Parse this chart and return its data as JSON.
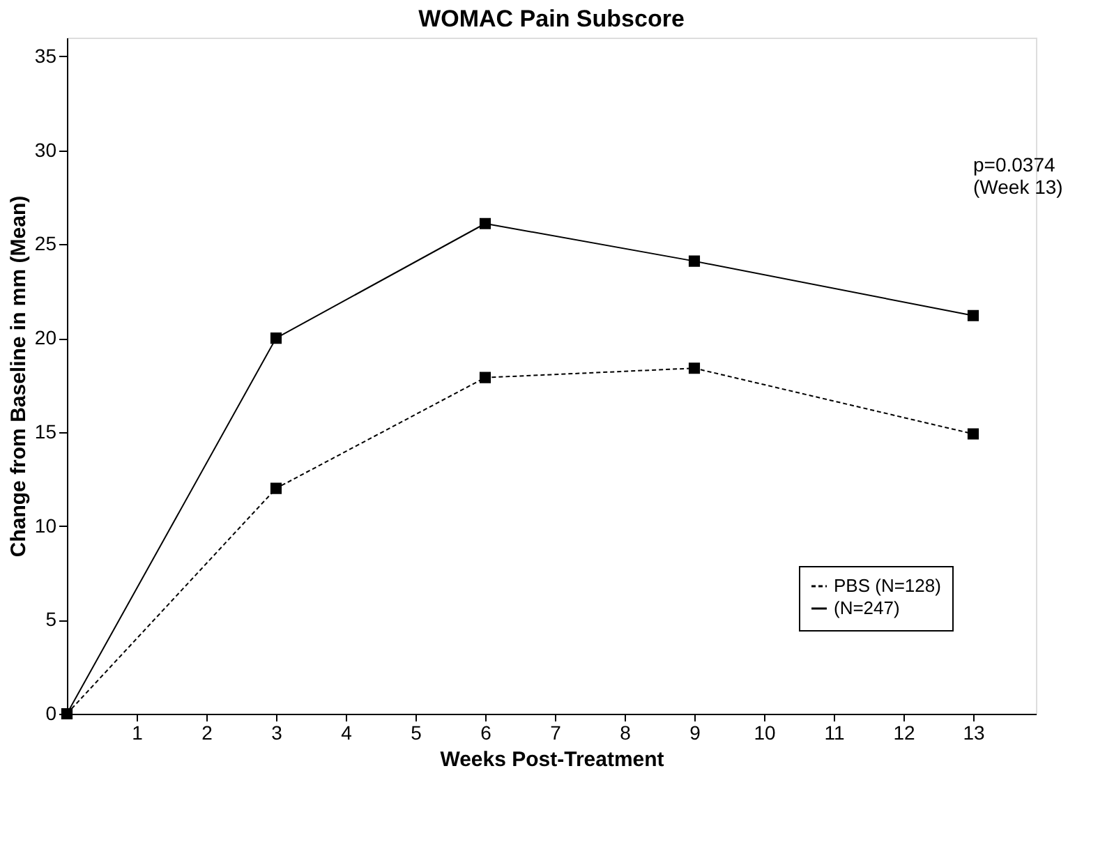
{
  "chart_data": {
    "type": "line",
    "title": "WOMAC Pain Subscore",
    "xlabel": "Weeks Post-Treatment",
    "ylabel": "Change from Baseline in mm (Mean)",
    "x": [
      0,
      3,
      6,
      9,
      13
    ],
    "series": [
      {
        "name": "PBS (N=128)",
        "color": "#000000",
        "values": [
          0,
          12,
          17.9,
          18.4,
          14.9
        ],
        "line_style": "dashed"
      },
      {
        "name": "(N=247)",
        "color": "#000000",
        "values": [
          0,
          20,
          26.1,
          24.1,
          21.2
        ],
        "line_style": "solid"
      }
    ],
    "xlim": [
      0,
      13.9
    ],
    "xticks": [
      1,
      2,
      3,
      4,
      5,
      6,
      7,
      8,
      9,
      10,
      11,
      12,
      13
    ],
    "ylim": [
      0,
      36
    ],
    "yticks": [
      0,
      5,
      10,
      15,
      20,
      25,
      30,
      35
    ],
    "grid": false,
    "marker": "square",
    "legend": "bottom right",
    "annotations": [
      "p=0.0374\n(Week 13)"
    ]
  }
}
